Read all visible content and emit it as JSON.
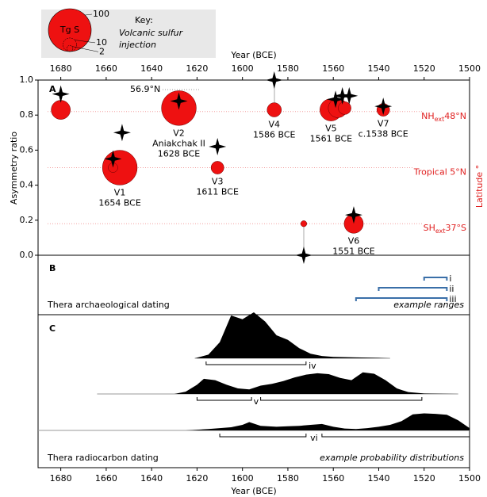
{
  "key": {
    "title": "Key:",
    "text": [
      "Volcanic sulfur",
      "injection"
    ],
    "symbol": "Tg S",
    "sizes": [
      100,
      10,
      2
    ]
  },
  "chart_data": [
    {
      "type": "scatter",
      "panel": "A",
      "xlabel": "Year (BCE)",
      "ylabel": "Asymmetry ratio",
      "y2label": "Latitude °",
      "xlim": [
        1690,
        1500
      ],
      "xticks": [
        1680,
        1660,
        1640,
        1620,
        1600,
        1580,
        1560,
        1540,
        1520,
        1500
      ],
      "ylim": [
        0,
        1
      ],
      "yticks": [
        {
          "value": 0,
          "label": "0.0"
        },
        {
          "value": 0.2,
          "label": "0.2"
        },
        {
          "value": 0.4,
          "label": "0.4"
        },
        {
          "value": 0.6,
          "label": "0.6"
        },
        {
          "value": 0.8,
          "label": "0.8"
        },
        {
          "value": 1,
          "label": "1.0"
        }
      ],
      "annotation": "56.9°N",
      "reference_lines": [
        {
          "y": 0.82,
          "label": "NH",
          "sub": "ext",
          "suffix": "48°N"
        },
        {
          "y": 0.5,
          "label": "Tropical 5°N"
        },
        {
          "y": 0.18,
          "label": "SH",
          "sub": "ext",
          "suffix": "37°S"
        }
      ],
      "sulfur": {
        "color": "#ee1111",
        "x": [
          1680,
          1654,
          1657,
          1628,
          1611,
          1586,
          1573,
          1561,
          1558,
          1555,
          1551,
          1538
        ],
        "values": [
          0.83,
          0.5,
          0.5,
          0.84,
          0.5,
          0.83,
          0.18,
          0.83,
          0.84,
          0.84,
          0.18,
          0.83
        ],
        "sizes": [
          20,
          66,
          5,
          66,
          9,
          11,
          2,
          27,
          20,
          9,
          20,
          9
        ],
        "labels": [
          null,
          "V1",
          null,
          "V2",
          "V3",
          "V4",
          null,
          "V5",
          null,
          null,
          "V6",
          "V7"
        ],
        "names": [
          null,
          null,
          null,
          "Aniakchak II",
          null,
          null,
          null,
          null,
          null,
          null,
          null,
          null
        ],
        "dates": [
          null,
          "1654 BCE",
          null,
          "1628 BCE",
          "1611 BCE",
          "1586 BCE",
          null,
          "1561 BCE",
          null,
          null,
          "1551 BCE",
          "c.1538 BCE"
        ]
      },
      "stars": {
        "color": "#000000",
        "x": [
          1680,
          1657,
          1653,
          1628,
          1611,
          1586,
          1573,
          1559,
          1556,
          1553,
          1551,
          1538
        ],
        "values": [
          0.92,
          0.55,
          0.7,
          0.88,
          0.62,
          1.0,
          0.0,
          0.89,
          0.91,
          0.91,
          0.23,
          0.85
        ]
      }
    },
    {
      "type": "range",
      "panel": "B",
      "text": "Thera archaeological dating",
      "note": "example ranges",
      "color": "#3a6fa8",
      "ranges": [
        {
          "label": "i",
          "values": [
            1520,
            1510
          ]
        },
        {
          "label": "ii",
          "values": [
            1540,
            1510
          ]
        },
        {
          "label": "iii",
          "values": [
            1550,
            1510
          ]
        }
      ]
    },
    {
      "type": "area",
      "panel": "C",
      "text": "Thera radiocarbon dating",
      "note": "example probability distributions",
      "series": [
        {
          "x": [
            1621,
            1615,
            1610,
            1605,
            1600,
            1595,
            1590,
            1585,
            1580,
            1575,
            1570,
            1565,
            1560,
            1550,
            1540,
            1535
          ],
          "values": [
            0,
            0.08,
            0.35,
            0.93,
            0.85,
            1.0,
            0.8,
            0.5,
            0.4,
            0.22,
            0.1,
            0.05,
            0.03,
            0.02,
            0.01,
            0
          ]
        },
        {
          "x": [
            1664,
            1630,
            1625,
            1620,
            1617,
            1612,
            1607,
            1602,
            1597,
            1592,
            1587,
            1582,
            1577,
            1572,
            1567,
            1562,
            1557,
            1552,
            1547,
            1542,
            1537,
            1532,
            1527,
            1520,
            1505
          ],
          "values": [
            0,
            0,
            0.05,
            0.2,
            0.33,
            0.3,
            0.2,
            0.12,
            0.1,
            0.18,
            0.22,
            0.28,
            0.36,
            0.42,
            0.45,
            0.43,
            0.35,
            0.3,
            0.47,
            0.44,
            0.3,
            0.12,
            0.04,
            0.01,
            0
          ]
        },
        {
          "x": [
            1690,
            1625,
            1615,
            1605,
            1600,
            1597,
            1592,
            1585,
            1580,
            1575,
            1570,
            1565,
            1560,
            1555,
            1550,
            1545,
            1540,
            1535,
            1530,
            1525,
            1520,
            1515,
            1510,
            1505,
            1500
          ],
          "values": [
            0,
            0,
            0.03,
            0.07,
            0.12,
            0.18,
            0.1,
            0.08,
            0.09,
            0.1,
            0.12,
            0.14,
            0.08,
            0.04,
            0.03,
            0.05,
            0.08,
            0.12,
            0.2,
            0.35,
            0.37,
            0.36,
            0.34,
            0.22,
            0.05
          ]
        }
      ],
      "brackets": [
        {
          "label": "iv",
          "ranges": [
            [
              1616,
              1572
            ]
          ]
        },
        {
          "label": "v",
          "ranges": [
            [
              1620,
              1596
            ],
            [
              1592,
              1521
            ]
          ]
        },
        {
          "label": "vi",
          "ranges": [
            [
              1610,
              1572
            ],
            [
              1565,
              1500
            ]
          ]
        }
      ]
    }
  ]
}
